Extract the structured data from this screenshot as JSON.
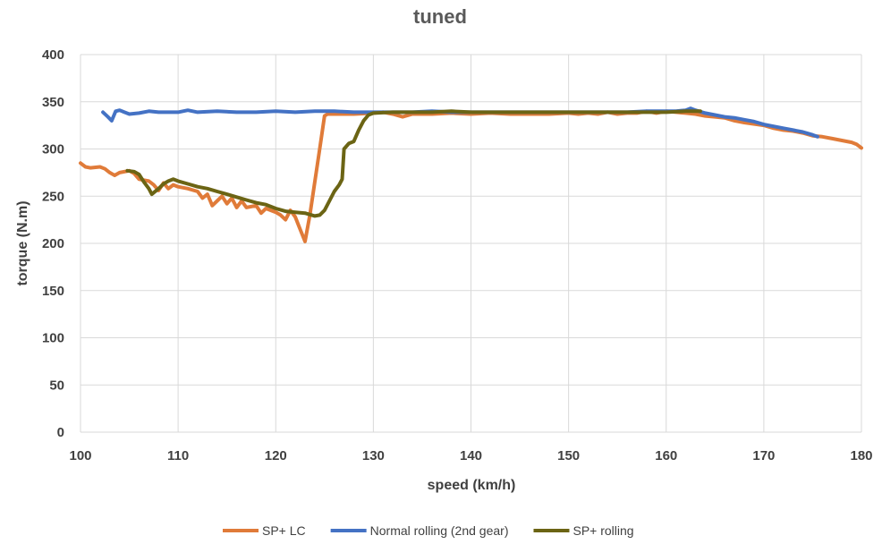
{
  "chart_data": {
    "type": "line",
    "title": "tuned",
    "xlabel": "speed (km/h)",
    "ylabel": "torque (N.m)",
    "xlim": [
      100,
      180
    ],
    "ylim": [
      0,
      400
    ],
    "xticks": [
      100,
      110,
      120,
      130,
      140,
      150,
      160,
      170,
      180
    ],
    "yticks": [
      0,
      50,
      100,
      150,
      200,
      250,
      300,
      350,
      400
    ],
    "grid": true,
    "legend_position": "bottom",
    "series": [
      {
        "name": "SP+ LC",
        "color": "#e07b39",
        "points": [
          [
            100,
            285
          ],
          [
            100.5,
            281
          ],
          [
            101,
            280
          ],
          [
            102,
            281
          ],
          [
            102.5,
            279
          ],
          [
            103,
            275
          ],
          [
            103.5,
            272
          ],
          [
            104,
            275
          ],
          [
            105,
            277
          ],
          [
            105.5,
            274
          ],
          [
            106,
            268
          ],
          [
            107,
            266
          ],
          [
            107.5,
            262
          ],
          [
            108,
            256
          ],
          [
            108.5,
            264
          ],
          [
            109,
            258
          ],
          [
            109.5,
            262
          ],
          [
            110,
            260
          ],
          [
            111,
            258
          ],
          [
            112,
            255
          ],
          [
            112.5,
            248
          ],
          [
            113,
            252
          ],
          [
            113.5,
            240
          ],
          [
            114,
            245
          ],
          [
            114.5,
            250
          ],
          [
            115,
            242
          ],
          [
            115.5,
            248
          ],
          [
            116,
            238
          ],
          [
            116.5,
            245
          ],
          [
            117,
            238
          ],
          [
            118,
            240
          ],
          [
            118.5,
            232
          ],
          [
            119,
            237
          ],
          [
            120,
            233
          ],
          [
            120.5,
            230
          ],
          [
            121,
            225
          ],
          [
            121.5,
            235
          ],
          [
            122,
            228
          ],
          [
            122.5,
            215
          ],
          [
            123,
            202
          ],
          [
            123.5,
            230
          ],
          [
            124,
            265
          ],
          [
            124.5,
            300
          ],
          [
            125,
            335
          ],
          [
            125.3,
            337
          ],
          [
            126,
            337
          ],
          [
            128,
            337
          ],
          [
            130,
            338
          ],
          [
            131,
            339
          ],
          [
            132,
            337
          ],
          [
            133,
            334
          ],
          [
            134,
            337
          ],
          [
            136,
            337
          ],
          [
            138,
            338
          ],
          [
            140,
            337
          ],
          [
            142,
            338
          ],
          [
            144,
            337
          ],
          [
            146,
            337
          ],
          [
            148,
            337
          ],
          [
            150,
            338
          ],
          [
            151,
            337
          ],
          [
            152,
            338
          ],
          [
            153,
            337
          ],
          [
            154,
            339
          ],
          [
            155,
            337
          ],
          [
            156,
            338
          ],
          [
            157,
            338
          ],
          [
            158,
            340
          ],
          [
            159,
            338
          ],
          [
            160,
            340
          ],
          [
            161,
            339
          ],
          [
            162,
            338
          ],
          [
            163,
            337
          ],
          [
            164,
            335
          ],
          [
            165,
            334
          ],
          [
            166,
            333
          ],
          [
            167,
            330
          ],
          [
            168,
            328
          ],
          [
            170,
            325
          ],
          [
            171,
            322
          ],
          [
            172,
            320
          ],
          [
            173,
            319
          ],
          [
            174,
            317
          ],
          [
            175,
            314
          ],
          [
            176,
            313
          ],
          [
            177,
            311
          ],
          [
            178,
            309
          ],
          [
            179,
            307
          ],
          [
            179.5,
            305
          ],
          [
            180,
            301
          ]
        ]
      },
      {
        "name": "Normal rolling (2nd gear)",
        "color": "#4472c4",
        "points": [
          [
            102.3,
            339
          ],
          [
            102.8,
            334
          ],
          [
            103.2,
            330
          ],
          [
            103.6,
            340
          ],
          [
            104,
            341
          ],
          [
            104.5,
            339
          ],
          [
            105,
            337
          ],
          [
            106,
            338
          ],
          [
            107,
            340
          ],
          [
            108,
            339
          ],
          [
            110,
            339
          ],
          [
            111,
            341
          ],
          [
            112,
            339
          ],
          [
            114,
            340
          ],
          [
            116,
            339
          ],
          [
            118,
            339
          ],
          [
            120,
            340
          ],
          [
            122,
            339
          ],
          [
            124,
            340
          ],
          [
            126,
            340
          ],
          [
            128,
            339
          ],
          [
            130,
            339
          ],
          [
            132,
            339
          ],
          [
            134,
            339
          ],
          [
            136,
            340
          ],
          [
            138,
            339
          ],
          [
            140,
            339
          ],
          [
            142,
            339
          ],
          [
            144,
            339
          ],
          [
            146,
            339
          ],
          [
            148,
            339
          ],
          [
            150,
            339
          ],
          [
            152,
            339
          ],
          [
            154,
            339
          ],
          [
            156,
            339
          ],
          [
            158,
            340
          ],
          [
            160,
            340
          ],
          [
            161,
            340
          ],
          [
            162,
            341
          ],
          [
            162.5,
            343
          ],
          [
            163,
            341
          ],
          [
            164,
            338
          ],
          [
            165,
            336
          ],
          [
            166,
            334
          ],
          [
            167,
            333
          ],
          [
            168,
            331
          ],
          [
            169,
            329
          ],
          [
            170,
            326
          ],
          [
            171,
            324
          ],
          [
            172,
            322
          ],
          [
            173,
            320
          ],
          [
            174,
            318
          ],
          [
            175,
            315
          ],
          [
            175.5,
            313
          ]
        ]
      },
      {
        "name": "SP+ rolling",
        "color": "#6b6414",
        "points": [
          [
            104.8,
            277
          ],
          [
            105.5,
            276
          ],
          [
            106,
            273
          ],
          [
            106.5,
            265
          ],
          [
            107,
            258
          ],
          [
            107.3,
            252
          ],
          [
            108,
            258
          ],
          [
            108.5,
            263
          ],
          [
            109,
            266
          ],
          [
            109.5,
            268
          ],
          [
            110,
            266
          ],
          [
            111,
            263
          ],
          [
            112,
            260
          ],
          [
            113,
            258
          ],
          [
            114,
            255
          ],
          [
            115,
            252
          ],
          [
            116,
            249
          ],
          [
            117,
            246
          ],
          [
            118,
            243
          ],
          [
            119,
            241
          ],
          [
            120,
            237
          ],
          [
            121,
            234
          ],
          [
            122,
            233
          ],
          [
            123,
            232
          ],
          [
            124,
            229
          ],
          [
            124.5,
            230
          ],
          [
            125,
            235
          ],
          [
            125.5,
            245
          ],
          [
            126,
            255
          ],
          [
            126.5,
            262
          ],
          [
            126.8,
            268
          ],
          [
            127,
            300
          ],
          [
            127.5,
            306
          ],
          [
            128,
            308
          ],
          [
            128.5,
            320
          ],
          [
            129,
            330
          ],
          [
            129.5,
            336
          ],
          [
            130,
            338
          ],
          [
            132,
            339
          ],
          [
            134,
            339
          ],
          [
            136,
            339
          ],
          [
            138,
            340
          ],
          [
            140,
            339
          ],
          [
            142,
            339
          ],
          [
            144,
            339
          ],
          [
            146,
            339
          ],
          [
            148,
            339
          ],
          [
            150,
            339
          ],
          [
            152,
            339
          ],
          [
            154,
            339
          ],
          [
            156,
            339
          ],
          [
            158,
            339
          ],
          [
            160,
            339
          ],
          [
            162,
            340
          ],
          [
            163.5,
            340
          ]
        ]
      }
    ]
  }
}
